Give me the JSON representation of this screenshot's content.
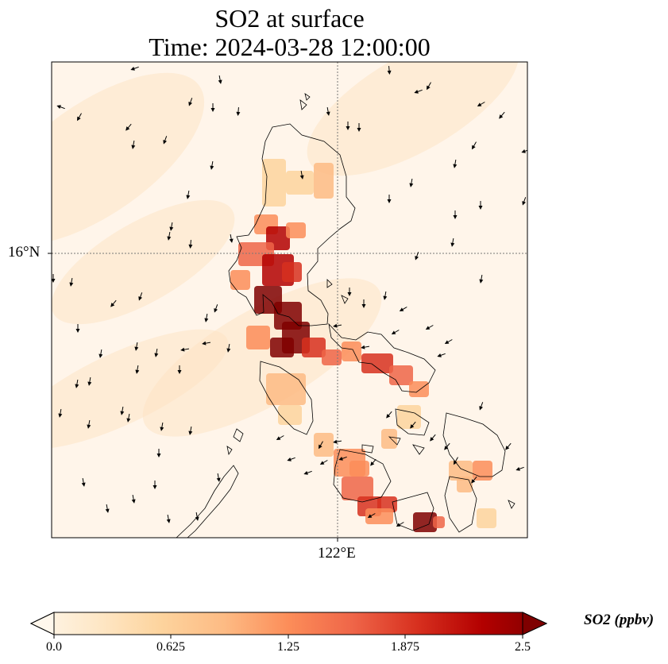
{
  "title_line1": "SO2 at surface",
  "title_line2": "Time: 2024-03-28 12:00:00",
  "lat_tick": "16°N",
  "lon_tick": "122°E",
  "colorbar": {
    "label": "SO2 (ppbv)",
    "ticks": [
      "0.0",
      "0.625",
      "1.25",
      "1.875",
      "2.5"
    ],
    "min": 0.0,
    "max": 2.5,
    "colormap": "OrRd",
    "colors": [
      "#fff7ec",
      "#fee8c8",
      "#fdd49e",
      "#fdbb84",
      "#fc8d59",
      "#ef6548",
      "#d7301f",
      "#b30000",
      "#7f0000"
    ],
    "extend": "both"
  },
  "chart_data": {
    "type": "heatmap",
    "variable": "SO2 at surface",
    "units": "ppbv",
    "gridlines": {
      "lat": "16°N",
      "lon": "122°E",
      "style": "dotted"
    },
    "overlays": [
      "coastlines",
      "wind vectors"
    ]
  }
}
